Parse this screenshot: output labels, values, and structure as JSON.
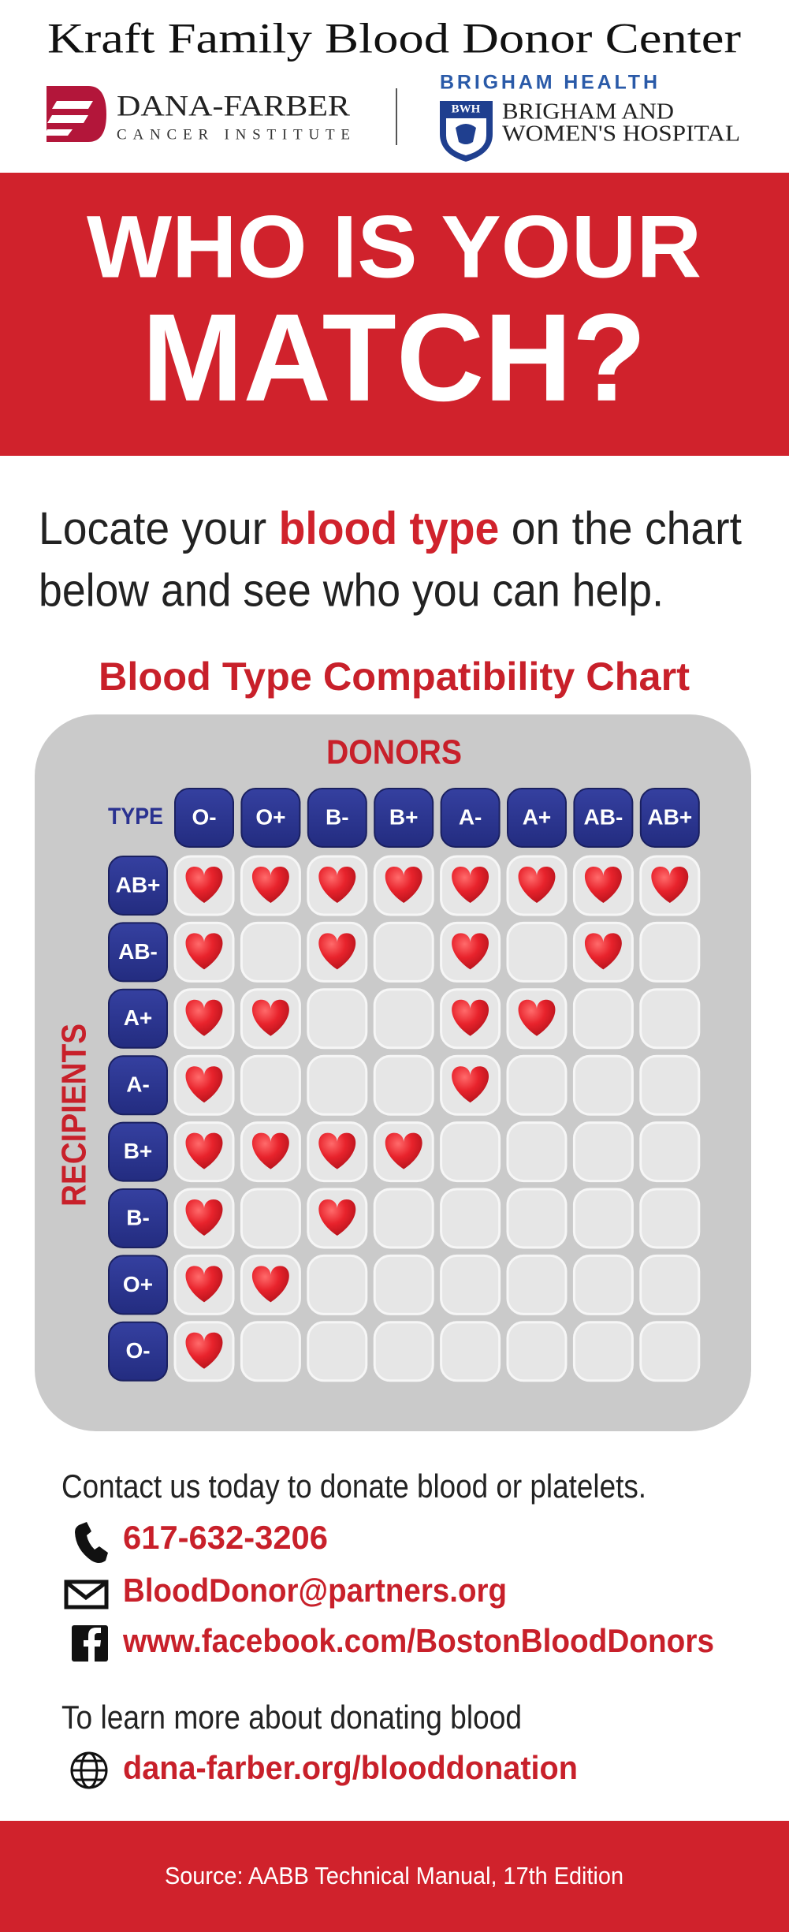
{
  "header": {
    "title": "Kraft Family Blood Donor Center",
    "logo_left": {
      "name": "DANA-FARBER",
      "sub": "CANCER INSTITUTE"
    },
    "logo_right": {
      "brand": "BRIGHAM HEALTH",
      "badge": "BWH",
      "line1": "BRIGHAM AND",
      "line2": "WOMEN'S HOSPITAL"
    }
  },
  "banner": {
    "line1": "WHO IS YOUR",
    "line2": "MATCH?"
  },
  "intro": {
    "before": "Locate your ",
    "highlight": "blood type",
    "after": " on the chart",
    "line2": "below and see who you can help."
  },
  "chart": {
    "title": "Blood Type Compatibility Chart",
    "donors_label": "DONORS",
    "type_label": "TYPE",
    "recipients_label": "RECIPIENTS",
    "donor_types": [
      "O-",
      "O+",
      "B-",
      "B+",
      "A-",
      "A+",
      "AB-",
      "AB+"
    ],
    "rows": [
      {
        "label": "AB+",
        "cells": [
          true,
          true,
          true,
          true,
          true,
          true,
          true,
          true
        ]
      },
      {
        "label": "AB-",
        "cells": [
          true,
          false,
          true,
          false,
          true,
          false,
          true,
          false
        ]
      },
      {
        "label": "A+",
        "cells": [
          true,
          true,
          false,
          false,
          true,
          true,
          false,
          false
        ]
      },
      {
        "label": "A-",
        "cells": [
          true,
          false,
          false,
          false,
          true,
          false,
          false,
          false
        ]
      },
      {
        "label": "B+",
        "cells": [
          true,
          true,
          true,
          true,
          false,
          false,
          false,
          false
        ]
      },
      {
        "label": "B-",
        "cells": [
          true,
          false,
          true,
          false,
          false,
          false,
          false,
          false
        ]
      },
      {
        "label": "O+",
        "cells": [
          true,
          true,
          false,
          false,
          false,
          false,
          false,
          false
        ]
      },
      {
        "label": "O-",
        "cells": [
          true,
          false,
          false,
          false,
          false,
          false,
          false,
          false
        ]
      }
    ]
  },
  "contact": {
    "intro": "Contact us today to donate blood or platelets.",
    "phone": "617-632-3206",
    "email": "BloodDonor@partners.org",
    "facebook": "www.facebook.com/BostonBloodDonors",
    "learn_more": "To learn more about donating blood",
    "website": "dana-farber.org/blooddonation"
  },
  "footer": {
    "source": "Source: AABB Technical Manual, 17th Edition"
  }
}
